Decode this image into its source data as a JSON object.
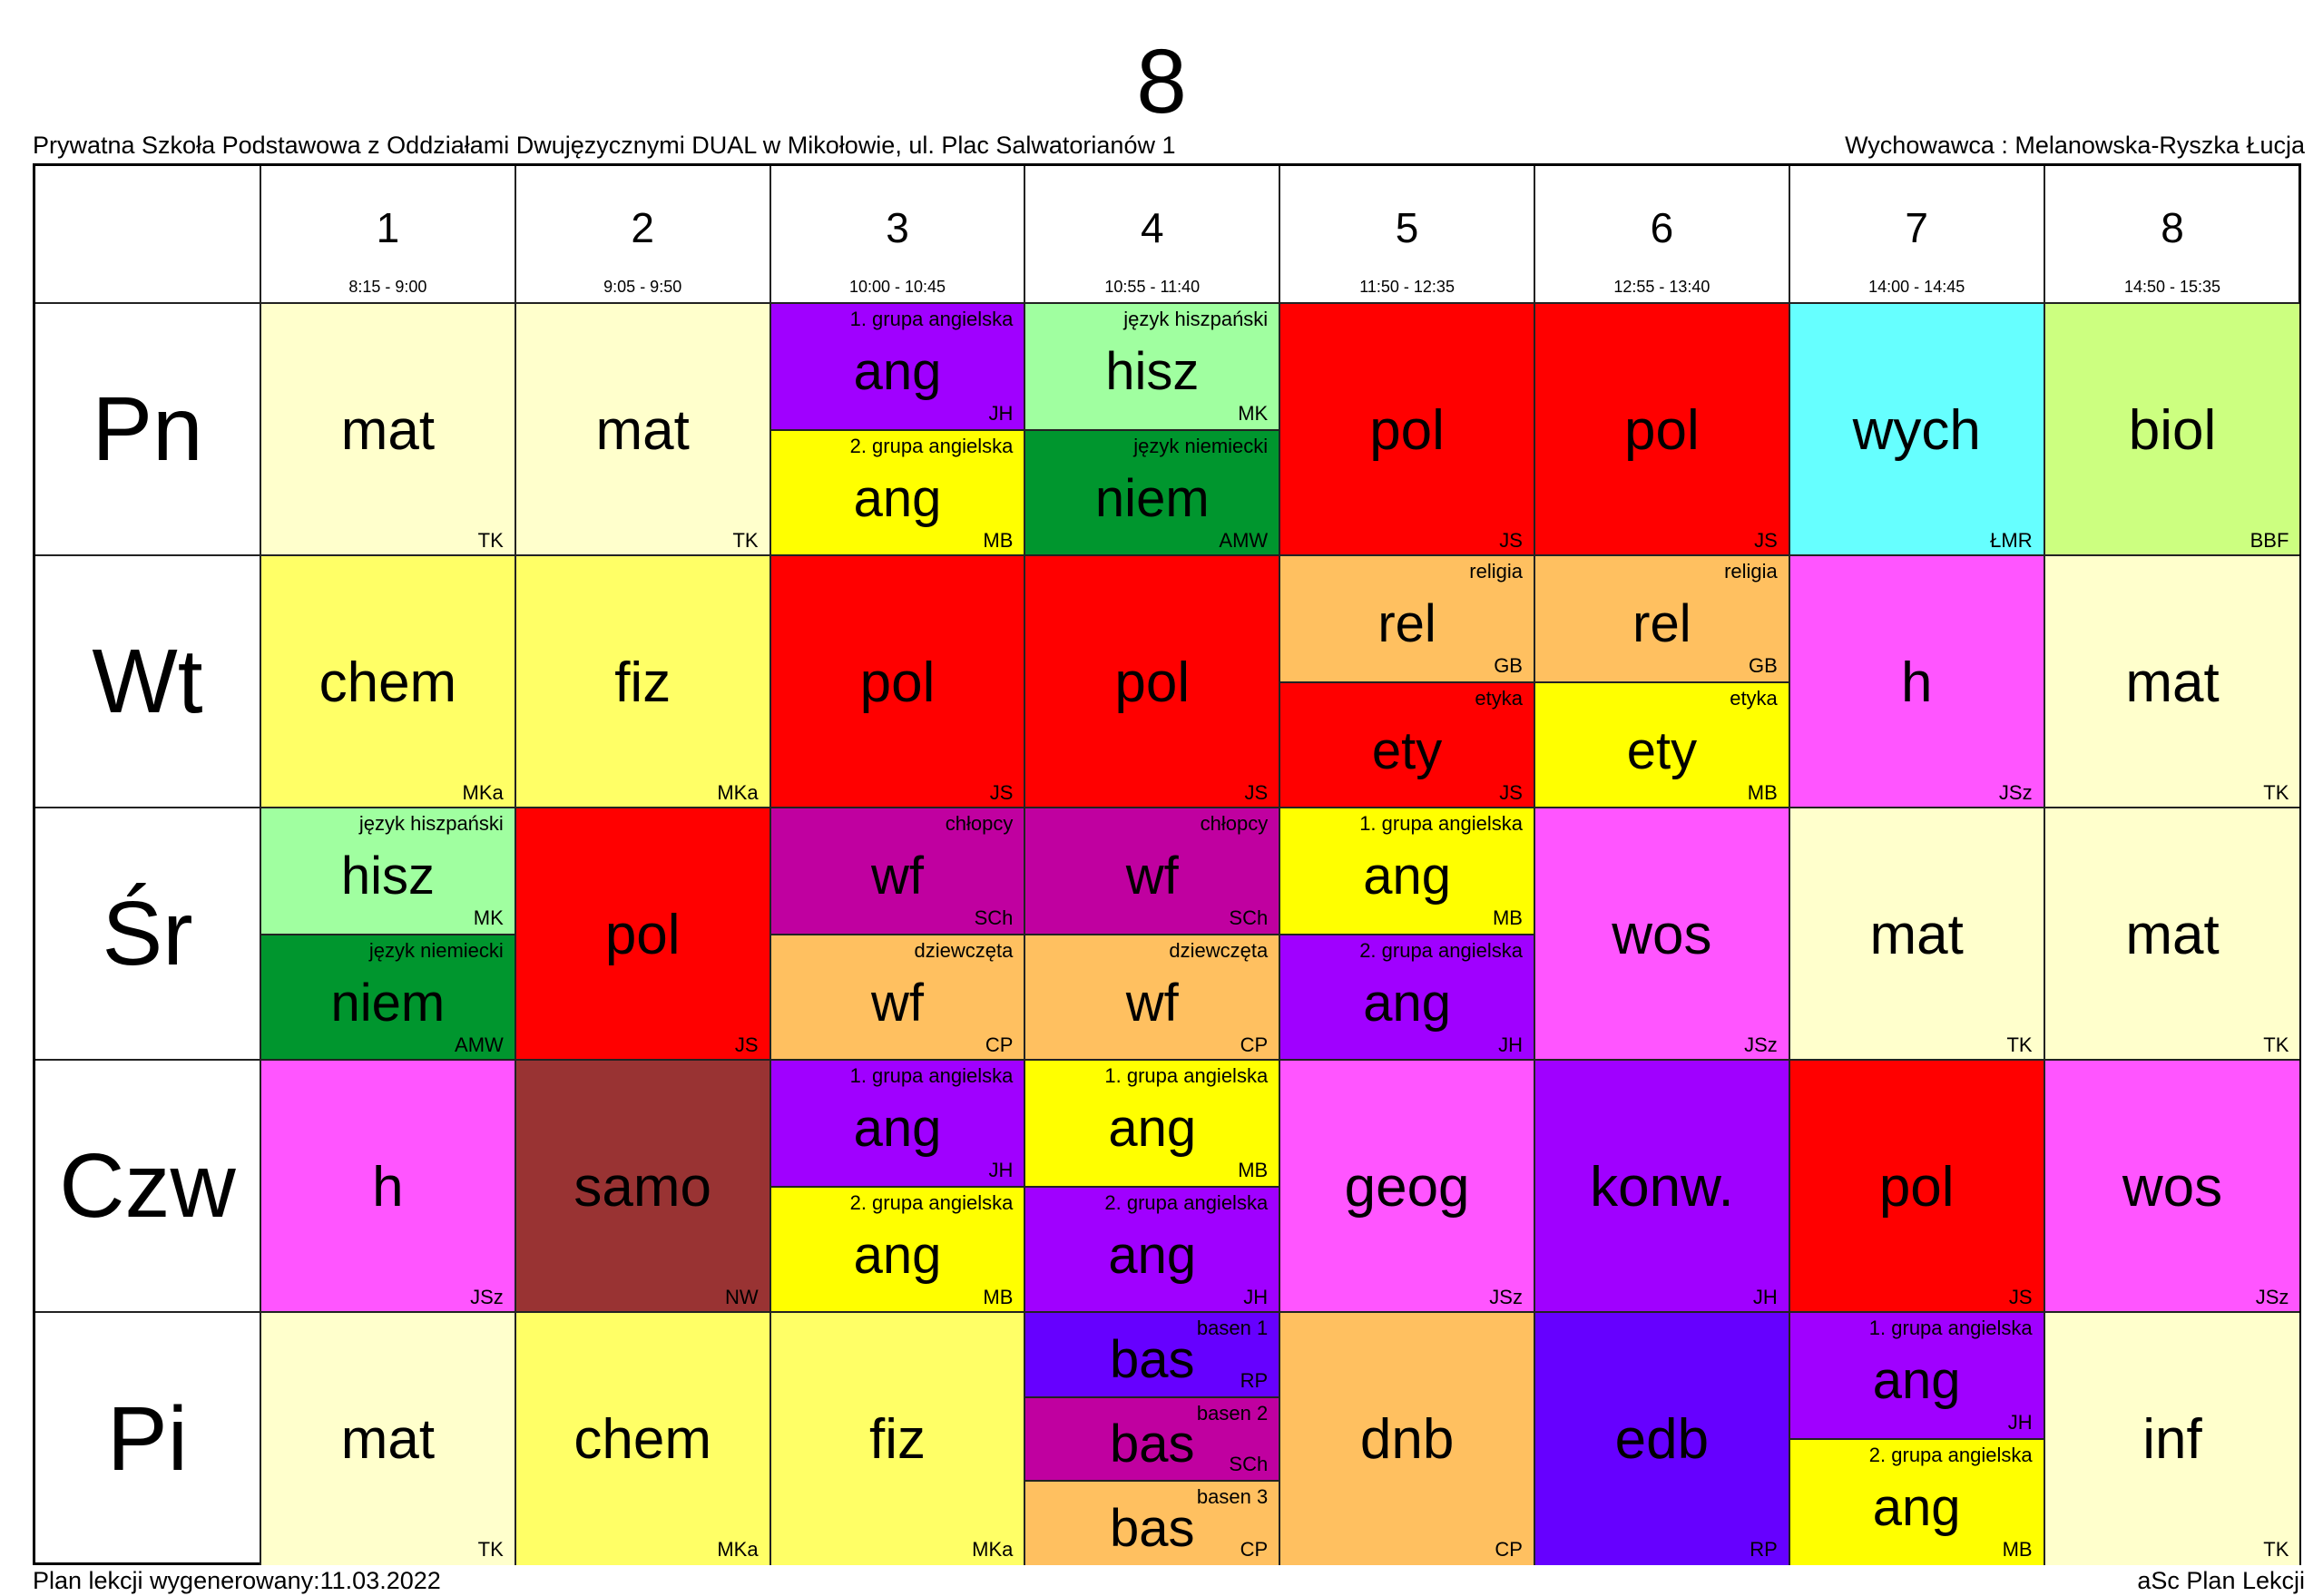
{
  "class_name": "8",
  "school": "Prywatna Szkoła Podstawowa z Oddziałami Dwujęzycznymi DUAL w Mikołowie, ul. Plac Salwatorianów 1",
  "form_teacher": "Wychowawca : Melanowska-Ryszka Łucja",
  "footer": {
    "generated": "Plan lekcji wygenerowany:11.03.2022",
    "software": "aSc Plan Lekcji"
  },
  "periods": [
    {
      "num": "1",
      "time": "8:15 - 9:00"
    },
    {
      "num": "2",
      "time": "9:05 - 9:50"
    },
    {
      "num": "3",
      "time": "10:00 - 10:45"
    },
    {
      "num": "4",
      "time": "10:55 - 11:40"
    },
    {
      "num": "5",
      "time": "11:50 - 12:35"
    },
    {
      "num": "6",
      "time": "12:55 - 13:40"
    },
    {
      "num": "7",
      "time": "14:00 - 14:45"
    },
    {
      "num": "8",
      "time": "14:50 - 15:35"
    }
  ],
  "days": [
    {
      "label": "Pn",
      "lessons": [
        [
          {
            "subject": "mat",
            "teacher": "TK",
            "color": "#FFFFCC"
          }
        ],
        [
          {
            "subject": "mat",
            "teacher": "TK",
            "color": "#FFFFCC"
          }
        ],
        [
          {
            "subject": "ang",
            "group": "1. grupa angielska",
            "teacher": "JH",
            "color": "#A000FF"
          },
          {
            "subject": "ang",
            "group": "2. grupa angielska",
            "teacher": "MB",
            "color": "#FFFF00"
          }
        ],
        [
          {
            "subject": "hisz",
            "group": "język hiszpański",
            "teacher": "MK",
            "color": "#A0FFA0"
          },
          {
            "subject": "niem",
            "group": "język niemiecki",
            "teacher": "AMW",
            "color": "#00962E"
          }
        ],
        [
          {
            "subject": "pol",
            "teacher": "JS",
            "color": "#FF0000"
          }
        ],
        [
          {
            "subject": "pol",
            "teacher": "JS",
            "color": "#FF0000"
          }
        ],
        [
          {
            "subject": "wych",
            "teacher": "ŁMR",
            "color": "#66FFFF"
          }
        ],
        [
          {
            "subject": "biol",
            "teacher": "BBF",
            "color": "#CCFF80"
          }
        ]
      ]
    },
    {
      "label": "Wt",
      "lessons": [
        [
          {
            "subject": "chem",
            "teacher": "MKa",
            "color": "#FFFF66"
          }
        ],
        [
          {
            "subject": "fiz",
            "teacher": "MKa",
            "color": "#FFFF66"
          }
        ],
        [
          {
            "subject": "pol",
            "teacher": "JS",
            "color": "#FF0000"
          }
        ],
        [
          {
            "subject": "pol",
            "teacher": "JS",
            "color": "#FF0000"
          }
        ],
        [
          {
            "subject": "rel",
            "group": "religia",
            "teacher": "GB",
            "color": "#FFC060"
          },
          {
            "subject": "ety",
            "group": "etyka",
            "teacher": "JS",
            "color": "#FF0000"
          }
        ],
        [
          {
            "subject": "rel",
            "group": "religia",
            "teacher": "GB",
            "color": "#FFC060"
          },
          {
            "subject": "ety",
            "group": "etyka",
            "teacher": "MB",
            "color": "#FFFF00"
          }
        ],
        [
          {
            "subject": "h",
            "teacher": "JSz",
            "color": "#FF55FF"
          }
        ],
        [
          {
            "subject": "mat",
            "teacher": "TK",
            "color": "#FFFFCC"
          }
        ]
      ]
    },
    {
      "label": "Śr",
      "lessons": [
        [
          {
            "subject": "hisz",
            "group": "język hiszpański",
            "teacher": "MK",
            "color": "#A0FFA0"
          },
          {
            "subject": "niem",
            "group": "język niemiecki",
            "teacher": "AMW",
            "color": "#00962E"
          }
        ],
        [
          {
            "subject": "pol",
            "teacher": "JS",
            "color": "#FF0000"
          }
        ],
        [
          {
            "subject": "wf",
            "group": "chłopcy",
            "teacher": "SCh",
            "color": "#C000A0"
          },
          {
            "subject": "wf",
            "group": "dziewczęta",
            "teacher": "CP",
            "color": "#FFC060"
          }
        ],
        [
          {
            "subject": "wf",
            "group": "chłopcy",
            "teacher": "SCh",
            "color": "#C000A0"
          },
          {
            "subject": "wf",
            "group": "dziewczęta",
            "teacher": "CP",
            "color": "#FFC060"
          }
        ],
        [
          {
            "subject": "ang",
            "group": "1. grupa angielska",
            "teacher": "MB",
            "color": "#FFFF00"
          },
          {
            "subject": "ang",
            "group": "2. grupa angielska",
            "teacher": "JH",
            "color": "#A000FF"
          }
        ],
        [
          {
            "subject": "wos",
            "teacher": "JSz",
            "color": "#FF55FF"
          }
        ],
        [
          {
            "subject": "mat",
            "teacher": "TK",
            "color": "#FFFFCC"
          }
        ],
        [
          {
            "subject": "mat",
            "teacher": "TK",
            "color": "#FFFFCC"
          }
        ]
      ]
    },
    {
      "label": "Czw",
      "lessons": [
        [
          {
            "subject": "h",
            "teacher": "JSz",
            "color": "#FF55FF"
          }
        ],
        [
          {
            "subject": "samo",
            "teacher": "NW",
            "color": "#993333"
          }
        ],
        [
          {
            "subject": "ang",
            "group": "1. grupa angielska",
            "teacher": "JH",
            "color": "#A000FF"
          },
          {
            "subject": "ang",
            "group": "2. grupa angielska",
            "teacher": "MB",
            "color": "#FFFF00"
          }
        ],
        [
          {
            "subject": "ang",
            "group": "1. grupa angielska",
            "teacher": "MB",
            "color": "#FFFF00"
          },
          {
            "subject": "ang",
            "group": "2. grupa angielska",
            "teacher": "JH",
            "color": "#A000FF"
          }
        ],
        [
          {
            "subject": "geog",
            "teacher": "JSz",
            "color": "#FF55FF"
          }
        ],
        [
          {
            "subject": "konw.",
            "teacher": "JH",
            "color": "#A000FF"
          }
        ],
        [
          {
            "subject": "pol",
            "teacher": "JS",
            "color": "#FF0000"
          }
        ],
        [
          {
            "subject": "wos",
            "teacher": "JSz",
            "color": "#FF55FF"
          }
        ]
      ]
    },
    {
      "label": "Pi",
      "lessons": [
        [
          {
            "subject": "mat",
            "teacher": "TK",
            "color": "#FFFFCC"
          }
        ],
        [
          {
            "subject": "chem",
            "teacher": "MKa",
            "color": "#FFFF66"
          }
        ],
        [
          {
            "subject": "fiz",
            "teacher": "MKa",
            "color": "#FFFF66"
          }
        ],
        [
          {
            "subject": "bas",
            "group": "basen 1",
            "teacher": "RP",
            "color": "#6600FF"
          },
          {
            "subject": "bas",
            "group": "basen 2",
            "teacher": "SCh",
            "color": "#C000A0"
          },
          {
            "subject": "bas",
            "group": "basen 3",
            "teacher": "CP",
            "color": "#FFC060"
          }
        ],
        [
          {
            "subject": "dnb",
            "teacher": "CP",
            "color": "#FFC060"
          }
        ],
        [
          {
            "subject": "edb",
            "teacher": "RP",
            "color": "#6600FF"
          }
        ],
        [
          {
            "subject": "ang",
            "group": "1. grupa angielska",
            "teacher": "JH",
            "color": "#A000FF"
          },
          {
            "subject": "ang",
            "group": "2. grupa angielska",
            "teacher": "MB",
            "color": "#FFFF00"
          }
        ],
        [
          {
            "subject": "inf",
            "teacher": "TK",
            "color": "#FFFFCC"
          }
        ]
      ]
    }
  ]
}
